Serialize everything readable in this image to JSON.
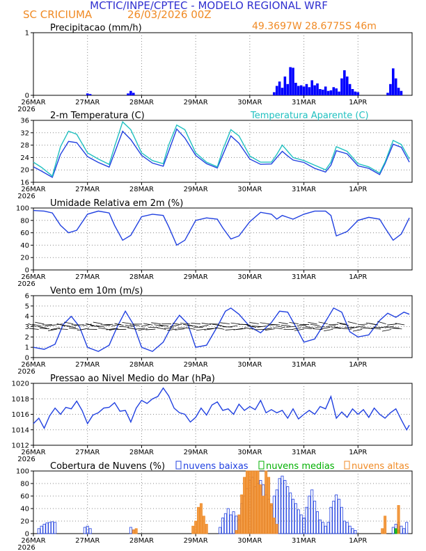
{
  "header": {
    "title": "MCTIC/INPE/CPTEC - MODELO REGIONAL WRF",
    "location": "SC CRICIUMA",
    "run": "26/03/2026 00Z",
    "coords": "49.3697W 28.6775S 46m"
  },
  "colors": {
    "title": "#3030d0",
    "accent": "#f08a24",
    "blue": "#0000ff",
    "line": "#2040e0",
    "cyan": "#20c0c0",
    "green": "#00b000",
    "grid": "#888888"
  },
  "xaxis": {
    "labels": [
      "26MAR",
      "27MAR",
      "28MAR",
      "29MAR",
      "30MAR",
      "31MAR",
      "1APR"
    ],
    "year": "2026"
  },
  "chart_data": [
    {
      "type": "bar",
      "title": "Precipitacao (mm/h)",
      "ylim": [
        0,
        1
      ],
      "yticks": [
        "0",
        "1"
      ],
      "x": [
        1.0,
        1.05,
        1.75,
        1.8,
        1.85,
        4.45,
        4.5,
        4.55,
        4.6,
        4.65,
        4.7,
        4.75,
        4.8,
        4.85,
        4.9,
        4.95,
        5.0,
        5.05,
        5.1,
        5.15,
        5.2,
        5.25,
        5.3,
        5.35,
        5.4,
        5.45,
        5.5,
        5.55,
        5.6,
        5.65,
        5.7,
        5.75,
        5.8,
        5.85,
        5.9,
        5.95,
        6.0,
        6.55,
        6.6,
        6.65,
        6.7,
        6.75,
        6.8
      ],
      "values": [
        0.03,
        0.02,
        0.03,
        0.07,
        0.04,
        0.05,
        0.15,
        0.22,
        0.12,
        0.3,
        0.18,
        0.45,
        0.44,
        0.2,
        0.15,
        0.16,
        0.14,
        0.18,
        0.13,
        0.24,
        0.16,
        0.19,
        0.1,
        0.09,
        0.14,
        0.07,
        0.08,
        0.13,
        0.11,
        0.06,
        0.27,
        0.4,
        0.3,
        0.18,
        0.1,
        0.06,
        0.05,
        0.04,
        0.18,
        0.43,
        0.27,
        0.12,
        0.07
      ]
    },
    {
      "type": "line",
      "title": "2-m Temperatura (C)",
      "ylim": [
        16,
        36
      ],
      "yticks": [
        "16",
        "20",
        "24",
        "28",
        "32",
        "36"
      ],
      "series": [
        {
          "name": "Temperatura",
          "x": [
            0.0,
            0.15,
            0.35,
            0.5,
            0.65,
            0.8,
            1.0,
            1.2,
            1.4,
            1.5,
            1.65,
            1.8,
            2.0,
            2.2,
            2.4,
            2.5,
            2.65,
            2.8,
            3.0,
            3.2,
            3.4,
            3.5,
            3.65,
            3.8,
            4.0,
            4.2,
            4.4,
            4.5,
            4.6,
            4.7,
            4.8,
            5.0,
            5.2,
            5.4,
            5.5,
            5.6,
            5.8,
            6.0,
            6.2,
            6.4,
            6.5,
            6.65,
            6.8,
            6.95
          ],
          "values": [
            21.0,
            19.6,
            17.6,
            25.0,
            29.2,
            28.8,
            24.3,
            22.4,
            20.9,
            25.5,
            32.5,
            29.8,
            24.7,
            22.2,
            21.2,
            26.0,
            33.2,
            30.3,
            24.7,
            22.0,
            20.6,
            24.8,
            31.0,
            28.6,
            23.5,
            21.8,
            21.9,
            24.0,
            26.0,
            24.5,
            23.2,
            22.4,
            20.5,
            19.3,
            21.5,
            26.2,
            25.2,
            21.3,
            20.5,
            18.5,
            22.0,
            28.3,
            27.3,
            22.5
          ]
        },
        {
          "name": "Temperatura Aparente (C)",
          "x": [
            0.0,
            0.15,
            0.35,
            0.5,
            0.65,
            0.8,
            1.0,
            1.2,
            1.4,
            1.5,
            1.65,
            1.8,
            2.0,
            2.2,
            2.4,
            2.5,
            2.65,
            2.8,
            3.0,
            3.2,
            3.4,
            3.5,
            3.65,
            3.8,
            4.0,
            4.2,
            4.4,
            4.5,
            4.6,
            4.7,
            4.8,
            5.0,
            5.2,
            5.4,
            5.5,
            5.6,
            5.8,
            6.0,
            6.2,
            6.4,
            6.5,
            6.65,
            6.8,
            6.95
          ],
          "values": [
            22.5,
            20.8,
            18.0,
            27.5,
            32.5,
            31.5,
            25.5,
            23.5,
            21.8,
            27.5,
            35.5,
            33.0,
            25.5,
            23.0,
            22.0,
            28.0,
            34.5,
            33.0,
            25.5,
            22.5,
            21.0,
            26.5,
            33.0,
            31.0,
            24.5,
            22.5,
            22.5,
            25.0,
            28.0,
            26.0,
            24.0,
            23.0,
            21.5,
            20.0,
            22.5,
            27.5,
            26.0,
            22.0,
            21.0,
            19.0,
            22.5,
            29.5,
            28.2,
            23.5
          ]
        }
      ]
    },
    {
      "type": "line",
      "title": "Umidade Relativa em 2m (%)",
      "ylim": [
        0,
        100
      ],
      "yticks": [
        "0",
        "20",
        "40",
        "60",
        "80",
        "100"
      ],
      "series": [
        {
          "name": "Umidade",
          "x": [
            0.0,
            0.2,
            0.35,
            0.5,
            0.65,
            0.8,
            1.0,
            1.2,
            1.4,
            1.5,
            1.65,
            1.8,
            2.0,
            2.2,
            2.4,
            2.5,
            2.65,
            2.8,
            3.0,
            3.2,
            3.4,
            3.5,
            3.65,
            3.8,
            4.0,
            4.2,
            4.4,
            4.5,
            4.6,
            4.7,
            4.8,
            5.0,
            5.2,
            5.4,
            5.5,
            5.6,
            5.8,
            6.0,
            6.2,
            6.4,
            6.5,
            6.65,
            6.8,
            6.95
          ],
          "values": [
            96,
            95,
            92,
            72,
            60,
            64,
            90,
            95,
            92,
            72,
            48,
            56,
            86,
            90,
            88,
            70,
            40,
            48,
            80,
            84,
            82,
            68,
            50,
            55,
            78,
            93,
            90,
            82,
            88,
            85,
            82,
            90,
            95,
            95,
            88,
            55,
            62,
            80,
            85,
            82,
            68,
            48,
            58,
            84
          ]
        }
      ]
    },
    {
      "type": "line",
      "title": "Vento em 10m (m/s)",
      "ylim": [
        0,
        6
      ],
      "yticks": [
        "0",
        "1",
        "2",
        "3",
        "4",
        "5",
        "6"
      ],
      "series": [
        {
          "name": "Vento",
          "x": [
            0.0,
            0.2,
            0.4,
            0.55,
            0.7,
            0.85,
            1.0,
            1.2,
            1.4,
            1.55,
            1.7,
            1.85,
            2.0,
            2.2,
            2.4,
            2.55,
            2.7,
            2.85,
            3.0,
            3.2,
            3.4,
            3.55,
            3.65,
            3.8,
            4.0,
            4.2,
            4.4,
            4.55,
            4.7,
            4.85,
            5.0,
            5.2,
            5.4,
            5.55,
            5.7,
            5.85,
            6.0,
            6.2,
            6.4,
            6.55,
            6.7,
            6.85,
            6.95
          ],
          "values": [
            1.0,
            0.8,
            1.3,
            3.2,
            4.0,
            3.0,
            1.0,
            0.6,
            1.2,
            3.0,
            4.5,
            3.2,
            1.0,
            0.6,
            1.5,
            3.0,
            4.1,
            3.3,
            1.0,
            1.2,
            3.0,
            4.5,
            4.8,
            4.2,
            3.0,
            2.4,
            3.4,
            4.5,
            4.4,
            3.0,
            1.5,
            1.8,
            3.5,
            4.8,
            4.4,
            2.5,
            2.0,
            2.2,
            3.6,
            4.3,
            3.9,
            4.4,
            4.2
          ]
        }
      ]
    },
    {
      "type": "line",
      "title": "Pressao ao Nivel Medio do Mar (hPa)",
      "ylim": [
        1012,
        1020
      ],
      "yticks": [
        "1012",
        "1014",
        "1016",
        "1018",
        "1020"
      ],
      "series": [
        {
          "name": "Pressao",
          "x": [
            0.0,
            0.1,
            0.2,
            0.3,
            0.4,
            0.5,
            0.6,
            0.7,
            0.8,
            0.9,
            1.0,
            1.1,
            1.2,
            1.3,
            1.4,
            1.5,
            1.6,
            1.7,
            1.8,
            1.9,
            2.0,
            2.1,
            2.2,
            2.3,
            2.4,
            2.5,
            2.6,
            2.7,
            2.8,
            2.9,
            3.0,
            3.1,
            3.2,
            3.3,
            3.4,
            3.5,
            3.6,
            3.7,
            3.8,
            3.9,
            4.0,
            4.1,
            4.2,
            4.3,
            4.4,
            4.5,
            4.6,
            4.7,
            4.8,
            4.9,
            5.0,
            5.1,
            5.2,
            5.3,
            5.4,
            5.5,
            5.6,
            5.7,
            5.8,
            5.9,
            6.0,
            6.1,
            6.2,
            6.3,
            6.4,
            6.5,
            6.6,
            6.7,
            6.8,
            6.9,
            6.95
          ],
          "values": [
            1014.8,
            1015.5,
            1014.2,
            1015.8,
            1016.8,
            1016.0,
            1016.9,
            1016.7,
            1017.7,
            1016.5,
            1014.8,
            1015.9,
            1016.2,
            1016.8,
            1016.9,
            1017.5,
            1016.4,
            1016.5,
            1015.0,
            1016.8,
            1017.8,
            1017.4,
            1018.0,
            1018.3,
            1019.4,
            1018.4,
            1016.8,
            1016.2,
            1016.0,
            1015.0,
            1015.6,
            1016.8,
            1015.9,
            1017.2,
            1017.6,
            1016.5,
            1016.7,
            1016.0,
            1017.3,
            1016.5,
            1017.0,
            1016.6,
            1017.8,
            1016.2,
            1016.6,
            1016.2,
            1016.5,
            1015.5,
            1016.7,
            1015.4,
            1016.0,
            1016.5,
            1016.0,
            1017.0,
            1016.7,
            1018.3,
            1015.5,
            1016.3,
            1015.6,
            1016.7,
            1016.0,
            1016.6,
            1015.6,
            1016.8,
            1016.0,
            1015.5,
            1016.2,
            1016.7,
            1015.3,
            1014.0,
            1014.6
          ]
        }
      ]
    },
    {
      "type": "bar",
      "title": "Cobertura de Nuvens (%)",
      "ylim": [
        0,
        100
      ],
      "yticks": [
        "0",
        "20",
        "40",
        "60",
        "80",
        "100"
      ],
      "legend": [
        "nuvens baixas",
        "nuvens medias",
        "nuvens altas"
      ],
      "series": [
        {
          "name": "nuvens baixas",
          "x": [
            0.1,
            0.15,
            0.2,
            0.25,
            0.3,
            0.35,
            0.4,
            0.95,
            1.0,
            1.05,
            1.8,
            1.85,
            3.45,
            3.5,
            3.55,
            3.6,
            3.65,
            3.7,
            3.75,
            3.8,
            3.85,
            3.9,
            3.95,
            4.0,
            4.05,
            4.1,
            4.15,
            4.2,
            4.25,
            4.3,
            4.35,
            4.4,
            4.45,
            4.5,
            4.55,
            4.6,
            4.65,
            4.7,
            4.75,
            4.8,
            4.85,
            4.9,
            4.95,
            5.0,
            5.05,
            5.1,
            5.15,
            5.2,
            5.25,
            5.3,
            5.35,
            5.4,
            5.45,
            5.5,
            5.55,
            5.6,
            5.65,
            5.7,
            5.75,
            5.8,
            5.85,
            5.9,
            5.95,
            6.65,
            6.7,
            6.75,
            6.8,
            6.85,
            6.9
          ],
          "values": [
            8,
            12,
            15,
            17,
            18,
            19,
            18,
            10,
            12,
            8,
            10,
            6,
            10,
            25,
            32,
            40,
            30,
            35,
            28,
            22,
            48,
            60,
            72,
            85,
            90,
            75,
            80,
            85,
            78,
            62,
            55,
            45,
            60,
            70,
            88,
            92,
            85,
            75,
            65,
            55,
            48,
            38,
            30,
            25,
            42,
            60,
            70,
            52,
            35,
            22,
            18,
            12,
            18,
            42,
            52,
            62,
            55,
            42,
            20,
            18,
            12,
            8,
            5,
            10,
            15,
            18,
            12,
            8,
            18
          ]
        },
        {
          "name": "nuvens medias",
          "x": [
            6.7,
            6.75
          ],
          "values": [
            8,
            6
          ]
        },
        {
          "name": "nuvens altas",
          "x": [
            1.85,
            1.9,
            2.95,
            3.0,
            3.05,
            3.1,
            3.15,
            3.2,
            3.75,
            3.8,
            3.85,
            3.9,
            3.95,
            4.0,
            4.05,
            4.1,
            4.15,
            4.2,
            4.25,
            4.3,
            4.35,
            4.4,
            4.45,
            4.5,
            6.45,
            6.5,
            6.75
          ],
          "values": [
            6,
            8,
            12,
            20,
            42,
            48,
            28,
            15,
            5,
            30,
            62,
            90,
            100,
            100,
            100,
            100,
            100,
            78,
            60,
            100,
            90,
            48,
            25,
            15,
            8,
            28,
            45
          ]
        }
      ]
    }
  ]
}
